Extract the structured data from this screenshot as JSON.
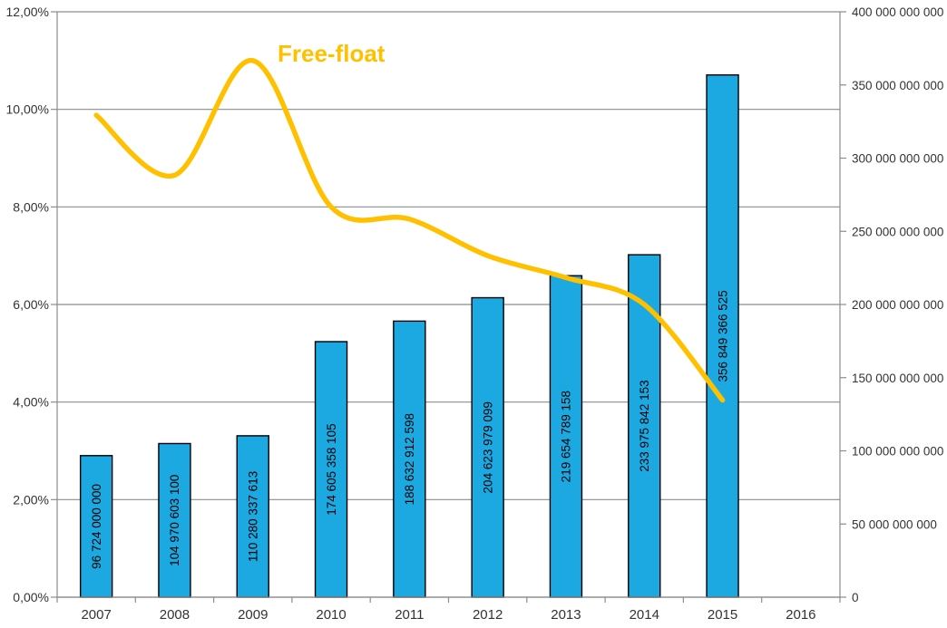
{
  "chart_data": {
    "type": "combo",
    "categories": [
      "2007",
      "2008",
      "2009",
      "2010",
      "2011",
      "2012",
      "2013",
      "2014",
      "2015",
      "2016"
    ],
    "bar_series": {
      "name": "market-value-bars",
      "axis": "right",
      "color": "#1CA9E1",
      "border_color": "#000000",
      "values": [
        96724000000,
        104970603100,
        110280337613,
        174605358105,
        188632912598,
        204623979099,
        219654789158,
        233975842153,
        356849366525,
        null
      ],
      "data_labels": [
        "96 724 000 000",
        "104 970 603 100",
        "110 280 337 613",
        "174 605 358 105",
        "188 632 912 598",
        "204 623 979 099",
        "219 654 789 158",
        "233 975 842 153",
        "356 849 366 525",
        null
      ]
    },
    "line_series": {
      "name": "Free-float",
      "axis": "left",
      "color": "#FFC000",
      "values_percent": [
        9.88,
        8.65,
        11.0,
        8.0,
        7.75,
        7.0,
        6.55,
        6.0,
        4.04,
        null
      ]
    },
    "left_axis": {
      "min": 0,
      "max": 12,
      "tick_step": 2,
      "tick_labels": [
        "12,00%",
        "10,00%",
        "8,00%",
        "6,00%",
        "4,00%",
        "2,00%",
        "0,00%"
      ]
    },
    "right_axis": {
      "min": 0,
      "max": 400000000000,
      "tick_step": 50000000000,
      "tick_labels": [
        "400 000 000 000",
        "350 000 000 000",
        "300 000 000 000",
        "250 000 000 000",
        "200 000 000 000",
        "150 000 000 000",
        "100 000 000 000",
        "50 000 000 000",
        "0"
      ]
    },
    "annotation": {
      "text": "Free-float",
      "color": "#FFC000"
    },
    "grid": true,
    "legend": "none",
    "colors": {
      "grid": "#8C8C8C",
      "axis_line": "#8C8C8C",
      "axis_text": "#333333",
      "bar_label_text": "#000000",
      "background": "#FFFFFF"
    }
  }
}
